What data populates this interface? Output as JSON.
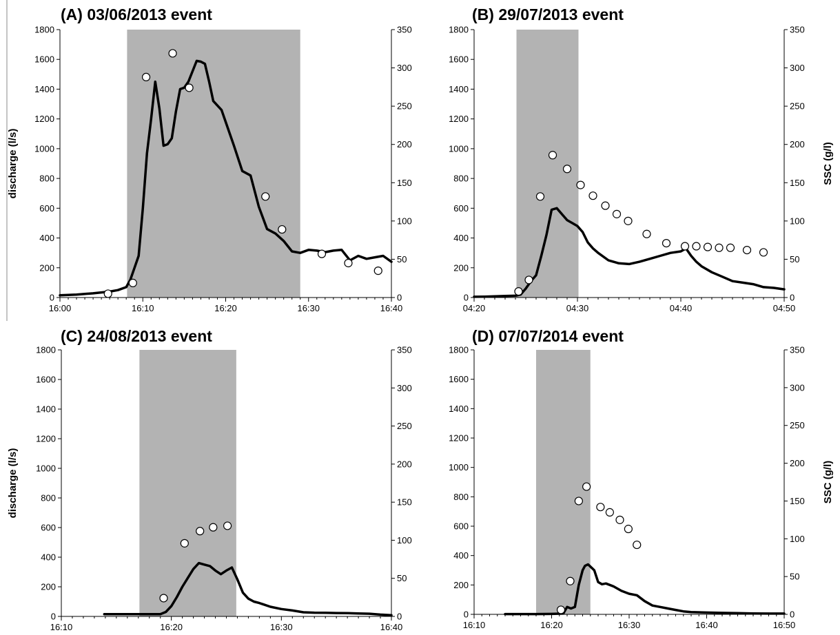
{
  "chart_data": [
    {
      "type": "line",
      "title": "(A) 03/06/2013 event",
      "ylabel": "discharge (l/s)",
      "y2label": "",
      "x_ticks": [
        "16:00",
        "16:10",
        "16:20",
        "16:30",
        "16:40"
      ],
      "x_range_min": [
        0,
        40
      ],
      "ylim": [
        0,
        1800
      ],
      "y2lim": [
        0,
        350
      ],
      "y_ticks": [
        0,
        200,
        400,
        600,
        800,
        1000,
        1200,
        1400,
        1600,
        1800
      ],
      "y2_ticks": [
        0,
        50,
        100,
        150,
        200,
        250,
        300,
        350
      ],
      "shaded_range_min": [
        8.1,
        29.0
      ],
      "shade_color": "#b3b3b3",
      "series": [
        {
          "kind": "discharge line, left axis (l/s)",
          "x_min": [
            0,
            2,
            4,
            6,
            7,
            8,
            8.5,
            9,
            9.5,
            10,
            10.5,
            11,
            11.5,
            12,
            12.5,
            13,
            13.5,
            14,
            14.5,
            15,
            15.5,
            16,
            16.5,
            17,
            17.5,
            18,
            18.5,
            19,
            19.5,
            20,
            21,
            22,
            23,
            24,
            25,
            26,
            27,
            28,
            29,
            30,
            31,
            32,
            33,
            34,
            35,
            36,
            37,
            38,
            39,
            40
          ],
          "y": [
            15,
            20,
            28,
            40,
            50,
            70,
            120,
            200,
            280,
            600,
            970,
            1200,
            1450,
            1270,
            1020,
            1030,
            1070,
            1250,
            1400,
            1410,
            1450,
            1520,
            1590,
            1585,
            1570,
            1450,
            1320,
            1290,
            1260,
            1180,
            1020,
            850,
            820,
            610,
            460,
            430,
            380,
            310,
            300,
            320,
            315,
            305,
            315,
            320,
            250,
            280,
            260,
            270,
            280,
            240
          ]
        },
        {
          "kind": "SSC points, right axis (g/l)",
          "x_min": [
            5.8,
            8.8,
            10.4,
            13.6,
            15.6,
            24.8,
            26.8,
            31.6,
            34.8,
            38.4
          ],
          "y": [
            5,
            19,
            288,
            319,
            274,
            132,
            89,
            57,
            45,
            35
          ]
        }
      ]
    },
    {
      "type": "line",
      "title": "(B) 29/07/2013 event",
      "ylabel": "",
      "y2label": "SSC (g/l)",
      "x_ticks": [
        "04:20",
        "04:30",
        "04:40",
        "04:50"
      ],
      "x_range_min": [
        0,
        30
      ],
      "ylim": [
        0,
        1800
      ],
      "y2lim": [
        0,
        350
      ],
      "y_ticks": [
        0,
        200,
        400,
        600,
        800,
        1000,
        1200,
        1400,
        1600,
        1800
      ],
      "y2_ticks": [
        0,
        50,
        100,
        150,
        200,
        250,
        300,
        350
      ],
      "shaded_range_min": [
        4.1,
        10.1
      ],
      "shade_color": "#b3b3b3",
      "series": [
        {
          "kind": "discharge line, left axis (l/s)",
          "x_min": [
            0,
            1,
            2,
            3,
            4,
            4.5,
            5,
            5.5,
            6,
            6.5,
            7,
            7.5,
            8,
            8.5,
            9,
            9.5,
            10,
            10.5,
            11,
            11.5,
            12,
            13,
            14,
            15,
            16,
            17,
            18,
            19,
            20,
            20.5,
            21,
            21.5,
            22,
            23,
            24,
            25,
            26,
            27,
            28,
            29,
            30
          ],
          "y": [
            5,
            6,
            8,
            10,
            12,
            20,
            60,
            110,
            150,
            280,
            420,
            590,
            600,
            560,
            520,
            500,
            480,
            440,
            370,
            330,
            300,
            250,
            230,
            225,
            240,
            260,
            280,
            300,
            310,
            330,
            280,
            240,
            210,
            170,
            140,
            110,
            100,
            90,
            70,
            65,
            55
          ]
        },
        {
          "kind": "SSC points, right axis (g/l)",
          "x_min": [
            4.3,
            5.3,
            6.4,
            7.6,
            9.0,
            10.3,
            11.5,
            12.7,
            13.8,
            14.9,
            16.7,
            18.6,
            20.4,
            21.5,
            22.6,
            23.7,
            24.8,
            26.4,
            28.0
          ],
          "y": [
            8,
            23,
            132,
            186,
            168,
            147,
            133,
            120,
            109,
            100,
            83,
            71,
            67,
            67,
            66,
            65,
            65,
            62,
            59
          ]
        }
      ]
    },
    {
      "type": "line",
      "title": "(C) 24/08/2013 event",
      "ylabel": "discharge (l/s)",
      "y2label": "",
      "x_ticks": [
        "16:10",
        "16:20",
        "16:30",
        "16:40"
      ],
      "x_range_min": [
        0,
        30
      ],
      "ylim": [
        0,
        1800
      ],
      "y2lim": [
        0,
        350
      ],
      "y_ticks": [
        0,
        200,
        400,
        600,
        800,
        1000,
        1200,
        1400,
        1600,
        1800
      ],
      "y2_ticks": [
        0,
        50,
        100,
        150,
        200,
        250,
        300,
        350
      ],
      "shaded_range_min": [
        7.1,
        15.9
      ],
      "shade_color": "#b3b3b3",
      "series": [
        {
          "kind": "discharge line, left axis (l/s)",
          "x_min": [
            3.9,
            5,
            6,
            7,
            8,
            9,
            9.5,
            10,
            10.5,
            11,
            11.5,
            12,
            12.5,
            13,
            13.5,
            14,
            14.5,
            15,
            15.5,
            16,
            16.5,
            17,
            17.5,
            18,
            19,
            20,
            21,
            22,
            23,
            24,
            25,
            26,
            27,
            28,
            29,
            30
          ],
          "y": [
            15,
            15,
            15,
            15,
            15,
            15,
            30,
            70,
            130,
            200,
            260,
            320,
            360,
            350,
            340,
            310,
            285,
            310,
            330,
            250,
            160,
            120,
            100,
            90,
            65,
            50,
            40,
            28,
            25,
            24,
            23,
            22,
            20,
            18,
            12,
            8
          ]
        },
        {
          "kind": "SSC points, right axis (g/l)",
          "x_min": [
            9.3,
            11.2,
            12.6,
            13.8,
            15.1
          ],
          "y": [
            24,
            96,
            112,
            117,
            119
          ]
        }
      ]
    },
    {
      "type": "line",
      "title": "(D) 07/07/2014 event",
      "ylabel": "",
      "y2label": "SSC (g/l)",
      "x_ticks": [
        "16:10",
        "16:20",
        "16:30",
        "16:40",
        "16:50"
      ],
      "x_range_min": [
        0,
        40
      ],
      "ylim": [
        0,
        1800
      ],
      "y2lim": [
        0,
        350
      ],
      "y_ticks": [
        0,
        200,
        400,
        600,
        800,
        1000,
        1200,
        1400,
        1600,
        1800
      ],
      "y2_ticks": [
        0,
        50,
        100,
        150,
        200,
        250,
        300,
        350
      ],
      "shaded_range_min": [
        8.0,
        15.0
      ],
      "shade_color": "#b3b3b3",
      "series": [
        {
          "kind": "discharge line, left axis (l/s)",
          "x_min": [
            4,
            6,
            8,
            10,
            11.5,
            12,
            12.5,
            13,
            13.5,
            14,
            14.3,
            14.7,
            15,
            15.5,
            16,
            16.5,
            17,
            17.5,
            18,
            19,
            20,
            21,
            22,
            23,
            24,
            25,
            26,
            27,
            28,
            30,
            32,
            34,
            36,
            38,
            40
          ],
          "y": [
            2,
            2,
            2,
            3,
            5,
            50,
            40,
            50,
            200,
            300,
            330,
            340,
            325,
            300,
            220,
            205,
            210,
            200,
            190,
            160,
            140,
            130,
            90,
            60,
            50,
            40,
            30,
            20,
            15,
            12,
            10,
            8,
            6,
            5,
            5
          ]
        },
        {
          "kind": "SSC points, right axis (g/l)",
          "x_min": [
            11.2,
            12.4,
            13.5,
            14.5,
            16.3,
            17.5,
            18.8,
            19.9,
            21.0
          ],
          "y": [
            6,
            44,
            150,
            169,
            142,
            135,
            125,
            113,
            92
          ]
        }
      ]
    }
  ]
}
